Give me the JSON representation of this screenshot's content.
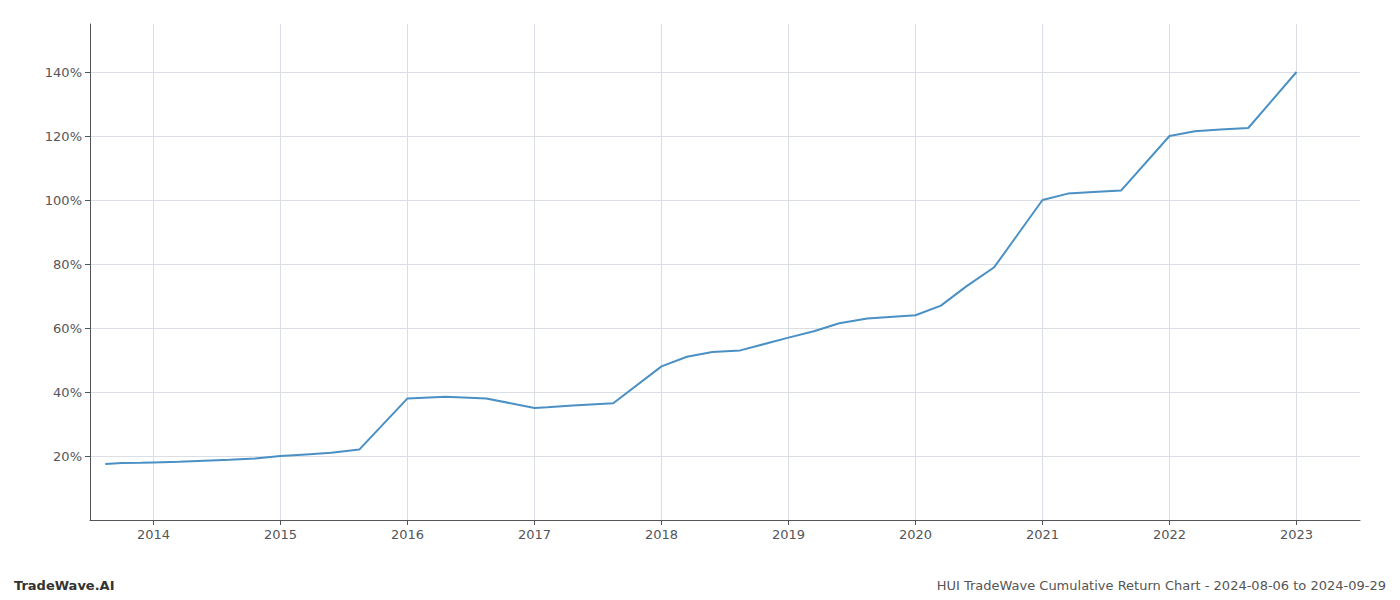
{
  "chart_data": {
    "type": "line",
    "x": [
      2013.62,
      2013.75,
      2013.9,
      2014.0,
      2014.2,
      2014.4,
      2014.6,
      2014.8,
      2015.0,
      2015.2,
      2015.4,
      2015.62,
      2016.0,
      2016.3,
      2016.62,
      2017.0,
      2017.1,
      2017.3,
      2017.62,
      2018.0,
      2018.2,
      2018.4,
      2018.62,
      2019.0,
      2019.2,
      2019.4,
      2019.62,
      2020.0,
      2020.2,
      2020.4,
      2020.62,
      2021.0,
      2021.2,
      2021.4,
      2021.62,
      2022.0,
      2022.2,
      2022.4,
      2022.62,
      2023.0
    ],
    "values": [
      17.5,
      17.8,
      17.9,
      18.0,
      18.2,
      18.5,
      18.8,
      19.2,
      20.0,
      20.5,
      21.0,
      22.0,
      38.0,
      38.5,
      38.0,
      35.0,
      35.2,
      35.8,
      36.5,
      48.0,
      51.0,
      52.5,
      53.0,
      57.0,
      59.0,
      61.5,
      63.0,
      64.0,
      67.0,
      73.0,
      79.0,
      100.0,
      102.0,
      102.5,
      103.0,
      120.0,
      121.5,
      122.0,
      122.5,
      140.0
    ],
    "color": "#4a90c4",
    "xlim": [
      2013.5,
      2023.5
    ],
    "xticks": [
      2014,
      2015,
      2016,
      2017,
      2018,
      2019,
      2020,
      2021,
      2022,
      2023
    ],
    "ylim": [
      0,
      155
    ],
    "yticks": [
      {
        "value": 20,
        "label": "20%"
      },
      {
        "value": 40,
        "label": "40%"
      },
      {
        "value": 60,
        "label": "60%"
      },
      {
        "value": 80,
        "label": "80%"
      },
      {
        "value": 100,
        "label": "100%"
      },
      {
        "value": 120,
        "label": "120%"
      },
      {
        "value": 140,
        "label": "140%"
      }
    ],
    "grid": true,
    "annotations": [
      "TradeWave.AI",
      "HUI TradeWave Cumulative Return Chart - 2024-08-06 to 2024-09-29"
    ]
  }
}
